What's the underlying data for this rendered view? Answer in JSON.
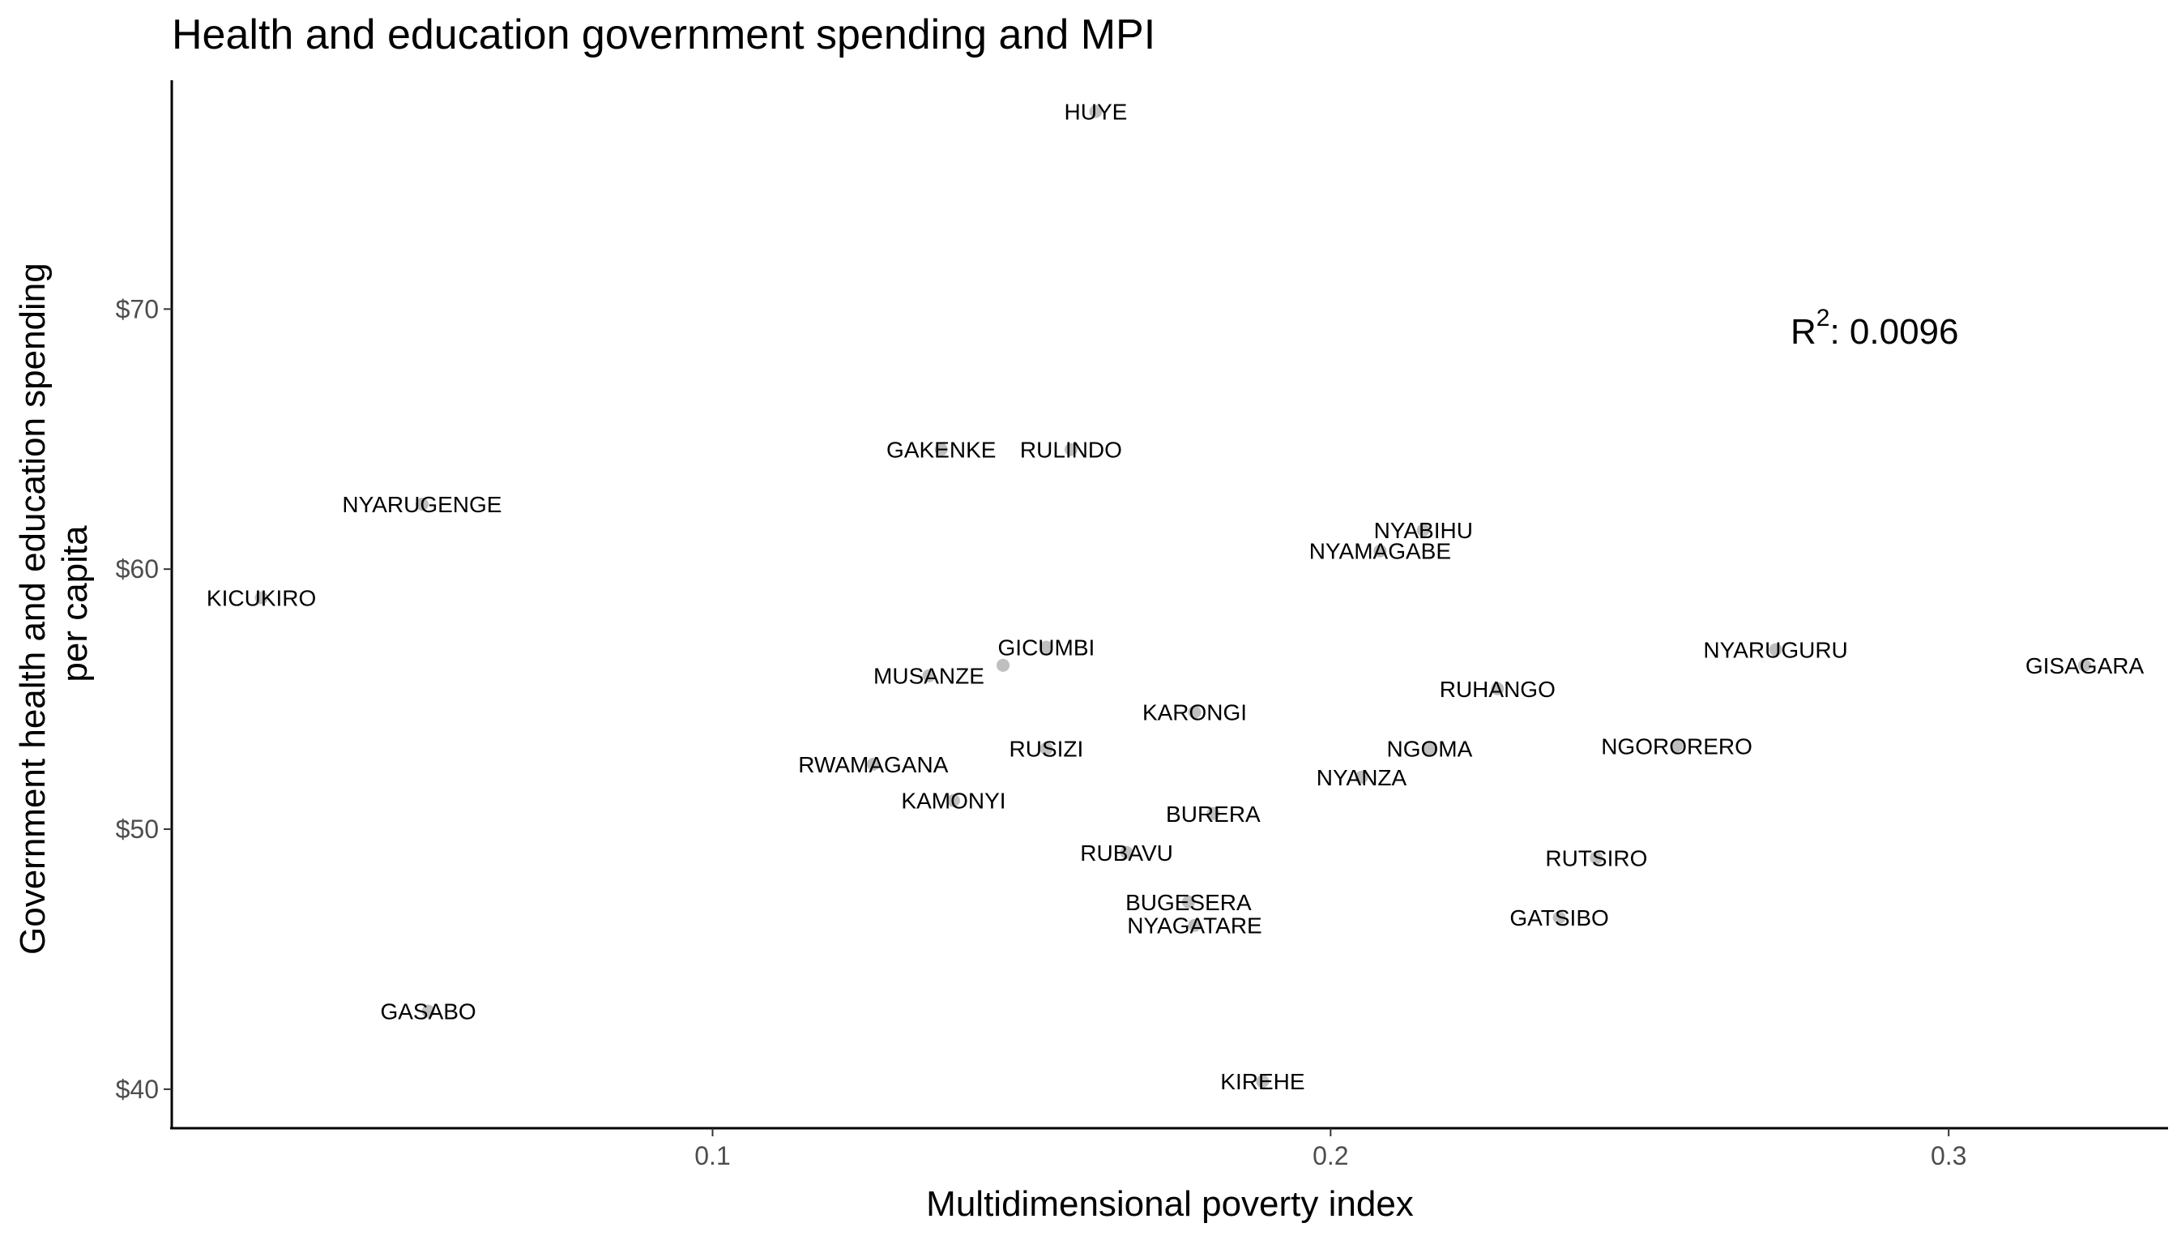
{
  "chart_data": {
    "type": "scatter",
    "title": "Health and education government spending and MPI",
    "xlabel": "Multidimensional poverty index",
    "ylabel_lines": [
      "Government health and education spending",
      "per capita"
    ],
    "xlim": [
      0.0125,
      0.3355
    ],
    "ylim": [
      38.5,
      78.8
    ],
    "x_ticks": [
      {
        "value": 0.1,
        "label": "0.1"
      },
      {
        "value": 0.2,
        "label": "0.2"
      },
      {
        "value": 0.3,
        "label": "0.3"
      }
    ],
    "y_ticks": [
      {
        "value": 40,
        "label": "$40"
      },
      {
        "value": 50,
        "label": "$50"
      },
      {
        "value": 60,
        "label": "$60"
      },
      {
        "value": 70,
        "label": "$70"
      }
    ],
    "grid": false,
    "point_color": "#bfbfbf",
    "annotation": {
      "base": "R",
      "superscript": "2",
      "text": ": 0.0096"
    },
    "points": [
      {
        "label": "HUYE",
        "x": 0.162,
        "y": 77.6
      },
      {
        "label": "GAKENKE",
        "x": 0.137,
        "y": 64.6
      },
      {
        "label": "RULINDO",
        "x": 0.158,
        "y": 64.6
      },
      {
        "label": "NYARUGENGE",
        "x": 0.053,
        "y": 62.5
      },
      {
        "label": "NYABIHU",
        "x": 0.215,
        "y": 61.5
      },
      {
        "label": "NYAMAGABE",
        "x": 0.208,
        "y": 60.7
      },
      {
        "label": "KICUKIRO",
        "x": 0.027,
        "y": 58.9
      },
      {
        "label": "GICUMBI",
        "x": 0.154,
        "y": 57.0
      },
      {
        "label": "",
        "x": 0.147,
        "y": 56.3
      },
      {
        "label": "NYARUGURU",
        "x": 0.272,
        "y": 56.9
      },
      {
        "label": "GISAGARA",
        "x": 0.322,
        "y": 56.3
      },
      {
        "label": "MUSANZE",
        "x": 0.135,
        "y": 55.9
      },
      {
        "label": "RUHANGO",
        "x": 0.227,
        "y": 55.4
      },
      {
        "label": "KARONGI",
        "x": 0.178,
        "y": 54.5
      },
      {
        "label": "NGOMA",
        "x": 0.216,
        "y": 53.1
      },
      {
        "label": "NGORORERO",
        "x": 0.256,
        "y": 53.2
      },
      {
        "label": "RUSIZI",
        "x": 0.154,
        "y": 53.1
      },
      {
        "label": "RWAMAGANA",
        "x": 0.126,
        "y": 52.5
      },
      {
        "label": "NYANZA",
        "x": 0.205,
        "y": 52.0
      },
      {
        "label": "KAMONYI",
        "x": 0.139,
        "y": 51.1
      },
      {
        "label": "BURERA",
        "x": 0.181,
        "y": 50.6
      },
      {
        "label": "RUBAVU",
        "x": 0.167,
        "y": 49.1
      },
      {
        "label": "RUTSIRO",
        "x": 0.243,
        "y": 48.9
      },
      {
        "label": "BUGESERA",
        "x": 0.177,
        "y": 47.2
      },
      {
        "label": "NYAGATARE",
        "x": 0.178,
        "y": 46.3
      },
      {
        "label": "GATSIBO",
        "x": 0.237,
        "y": 46.6
      },
      {
        "label": "GASABO",
        "x": 0.054,
        "y": 43.0
      },
      {
        "label": "KIREHE",
        "x": 0.189,
        "y": 40.3
      }
    ]
  }
}
